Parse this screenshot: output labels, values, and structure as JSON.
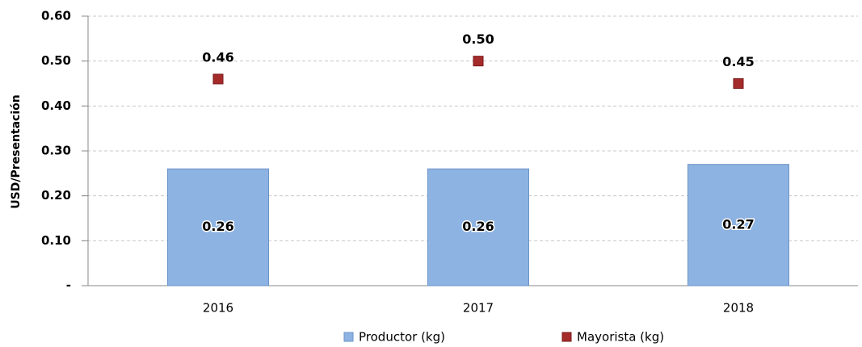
{
  "chart_data": {
    "type": "bar",
    "y_label": "USD/Presentación",
    "categories": [
      "2016",
      "2017",
      "2018"
    ],
    "series": [
      {
        "name": "Productor (kg)",
        "type": "bar",
        "color": "#8db3e2",
        "values": [
          0.26,
          0.26,
          0.27
        ],
        "value_labels": [
          "0.26",
          "0.26",
          "0.27"
        ]
      },
      {
        "name": "Mayorista (kg)",
        "type": "scatter",
        "color": "#a52a2a",
        "values": [
          0.46,
          0.5,
          0.45
        ],
        "value_labels": [
          "0.46",
          "0.50",
          "0.45"
        ]
      }
    ],
    "ylim": [
      0,
      0.6
    ],
    "yticks": [
      {
        "value": 0,
        "label": "-"
      },
      {
        "value": 0.1,
        "label": "0.10"
      },
      {
        "value": 0.2,
        "label": "0.20"
      },
      {
        "value": 0.3,
        "label": "0.30"
      },
      {
        "value": 0.4,
        "label": "0.40"
      },
      {
        "value": 0.5,
        "label": "0.50"
      },
      {
        "value": 0.6,
        "label": "0.60"
      }
    ],
    "grid": true,
    "legend": "bottom"
  }
}
